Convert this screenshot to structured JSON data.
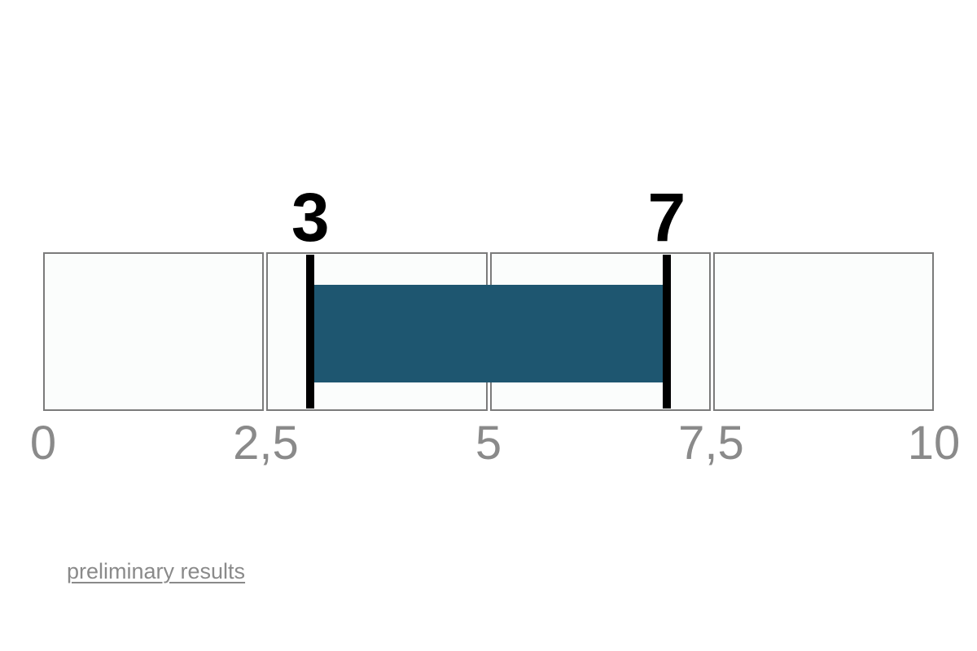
{
  "chart_data": {
    "type": "bar",
    "subtype": "horizontal-range-slider",
    "title": "",
    "xlabel": "",
    "ylabel": "",
    "axis": {
      "min": 0,
      "max": 10,
      "ticks": [
        {
          "label": "0",
          "value": 0
        },
        {
          "label": "2,5",
          "value": 2.5
        },
        {
          "label": "5",
          "value": 5
        },
        {
          "label": "7,5",
          "value": 7.5
        },
        {
          "label": "10",
          "value": 10
        }
      ]
    },
    "segments": 4,
    "range": {
      "low": 3,
      "high": 7,
      "low_label": "3",
      "high_label": "7"
    },
    "grid": "off",
    "legend": "none",
    "colors": {
      "bar": "#1E5670",
      "marker": "#000000",
      "segment_fill": "#FBFDFC",
      "segment_border": "#7B7B7B",
      "tick_label": "#8A8A8A",
      "value_label": "#000000"
    }
  },
  "footer": {
    "link_label": "preliminary results",
    "link_color": "#8A8A8A"
  }
}
